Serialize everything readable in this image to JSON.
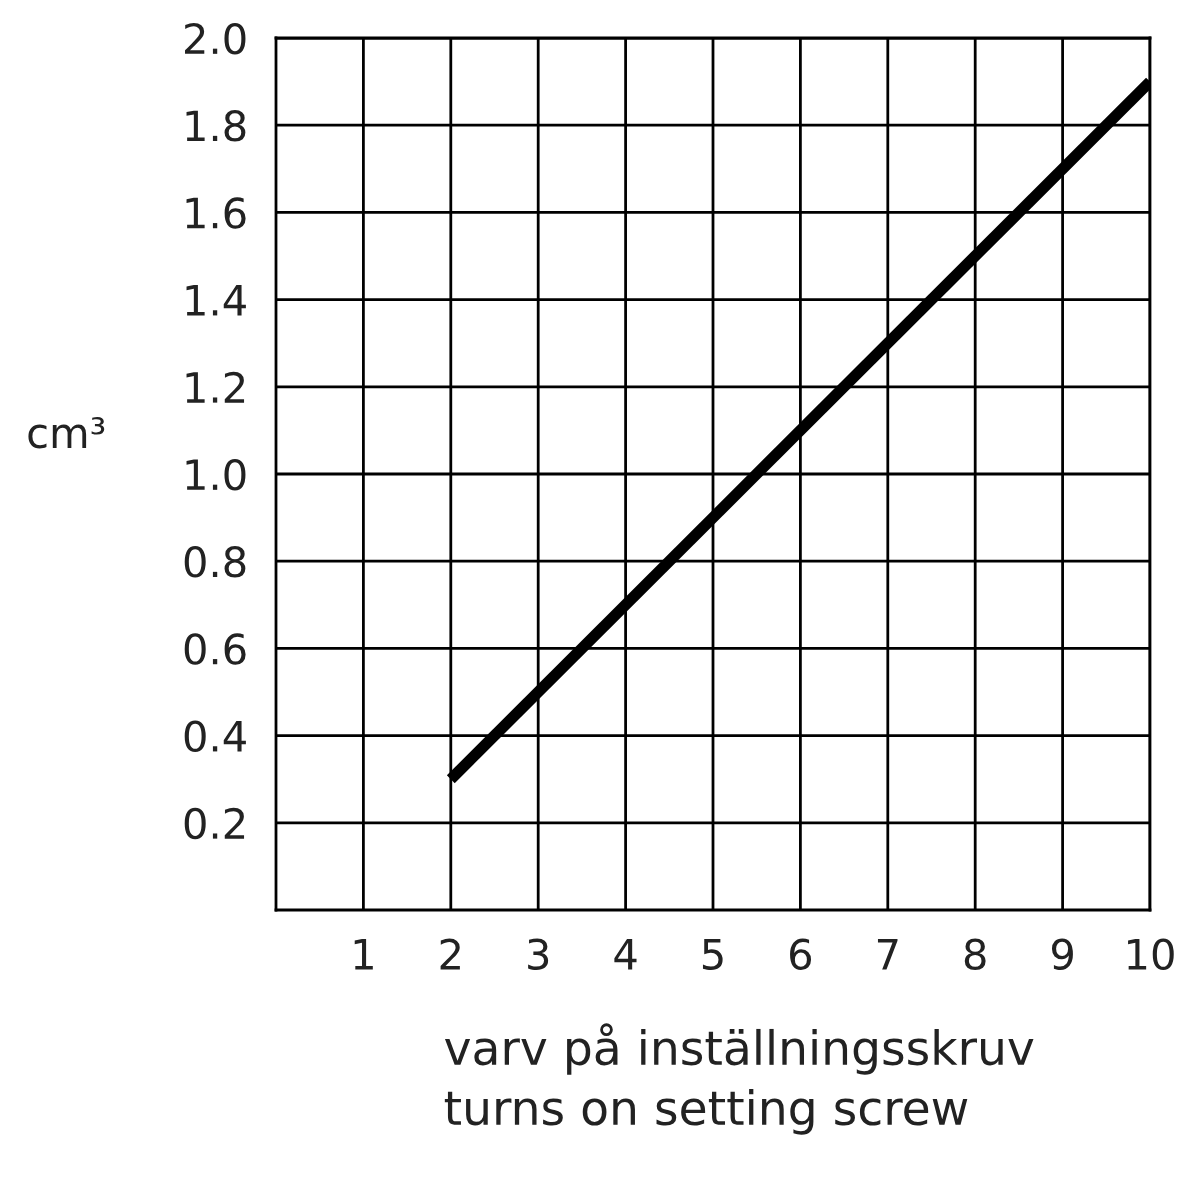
{
  "chart_data": {
    "type": "line",
    "xlabel": "varv på inställningsskruv\nturns on setting screw",
    "ylabel": "cm³",
    "x": [
      2,
      10
    ],
    "series": [
      {
        "color": "#000000",
        "values": [
          0.3,
          1.9
        ]
      }
    ],
    "xlim": [
      0,
      10
    ],
    "xticks": [
      1,
      2,
      3,
      4,
      5,
      6,
      7,
      8,
      9,
      10
    ],
    "ylim": [
      0,
      2.0
    ],
    "yticks": [
      0.2,
      0.4,
      0.6,
      0.8,
      {
        "value": 1,
        "label": "1.0"
      },
      1.2,
      1.4,
      1.6,
      1.8,
      {
        "value": 2,
        "label": "2.0"
      }
    ],
    "grid": true,
    "legend": false,
    "marker": "none",
    "line_style": "solid"
  }
}
